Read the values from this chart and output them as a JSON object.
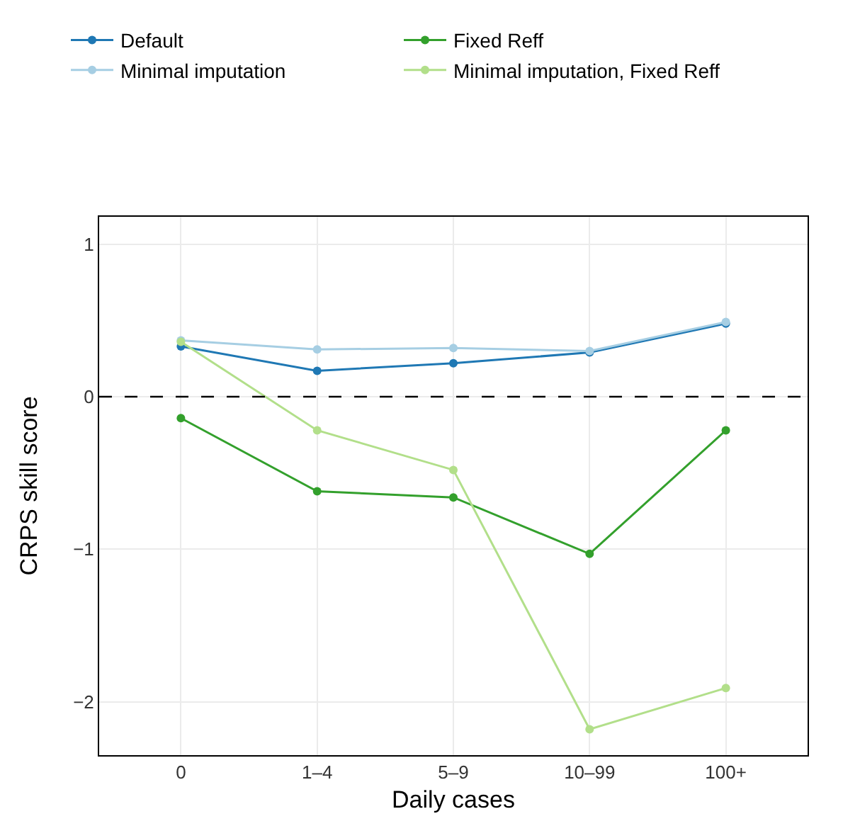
{
  "chart_data": {
    "type": "line",
    "xlabel": "Daily cases",
    "ylabel": "CRPS skill score",
    "categories": [
      "0",
      "1–4",
      "5–9",
      "10–99",
      "100+"
    ],
    "series": [
      {
        "name": "Default",
        "color": "#1f78b4",
        "values": [
          0.33,
          0.17,
          0.22,
          0.29,
          0.48
        ]
      },
      {
        "name": "Fixed Reff",
        "color": "#33a02c",
        "values": [
          -0.14,
          -0.62,
          -0.66,
          -1.03,
          -0.22
        ]
      },
      {
        "name": "Minimal imputation",
        "color": "#a6cee3",
        "values": [
          0.37,
          0.31,
          0.32,
          0.3,
          0.49
        ]
      },
      {
        "name": "Minimal imputation, Fixed Reff",
        "color": "#b2df8a",
        "values": [
          0.36,
          -0.22,
          -0.48,
          -2.18,
          -1.91
        ]
      }
    ],
    "ylim": [
      -2.35,
      1.18
    ],
    "yticks": [
      {
        "value": -2,
        "label": "−2"
      },
      {
        "value": -1,
        "label": "−1"
      },
      0,
      1
    ],
    "ref_lines": [
      {
        "axis": "y",
        "value": 0,
        "color": "#000000",
        "line_style": "dashed"
      }
    ],
    "grid": true,
    "legend": "top",
    "marker": "circle",
    "line_style": "solid"
  }
}
